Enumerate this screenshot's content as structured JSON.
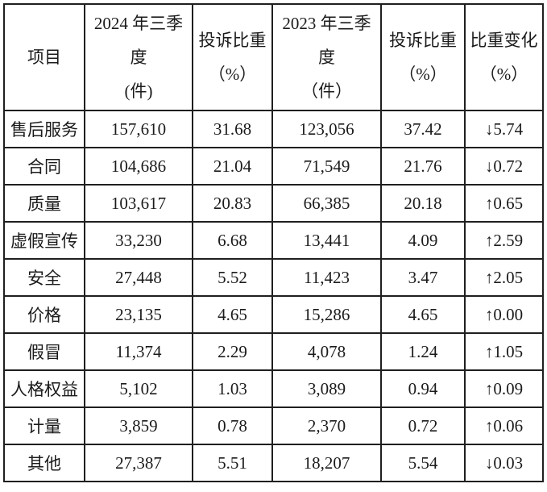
{
  "table": {
    "headers": [
      [
        "项目"
      ],
      [
        "2024 年三季",
        "度",
        "(件)"
      ],
      [
        "投诉比重",
        "（%）"
      ],
      [
        "2023 年三季",
        "度",
        "（件）"
      ],
      [
        "投诉比重",
        "（%）"
      ],
      [
        "比重变化",
        "（%）"
      ]
    ],
    "rows": [
      [
        "售后服务",
        "157,610",
        "31.68",
        "123,056",
        "37.42",
        "↓5.74"
      ],
      [
        "合同",
        "104,686",
        "21.04",
        "71,549",
        "21.76",
        "↓0.72"
      ],
      [
        "质量",
        "103,617",
        "20.83",
        "66,385",
        "20.18",
        "↑0.65"
      ],
      [
        "虚假宣传",
        "33,230",
        "6.68",
        "13,441",
        "4.09",
        "↑2.59"
      ],
      [
        "安全",
        "27,448",
        "5.52",
        "11,423",
        "3.47",
        "↑2.05"
      ],
      [
        "价格",
        "23,135",
        "4.65",
        "15,286",
        "4.65",
        "↑0.00"
      ],
      [
        "假冒",
        "11,374",
        "2.29",
        "4,078",
        "1.24",
        "↑1.05"
      ],
      [
        "人格权益",
        "5,102",
        "1.03",
        "3,089",
        "0.94",
        "↑0.09"
      ],
      [
        "计量",
        "3,859",
        "0.78",
        "2,370",
        "0.72",
        "↑0.06"
      ],
      [
        "其他",
        "27,387",
        "5.51",
        "18,207",
        "5.54",
        "↓0.03"
      ]
    ],
    "colors": {
      "border": "#1f1f1f",
      "text": "#1b1b1b",
      "background": "#ffffff"
    }
  }
}
